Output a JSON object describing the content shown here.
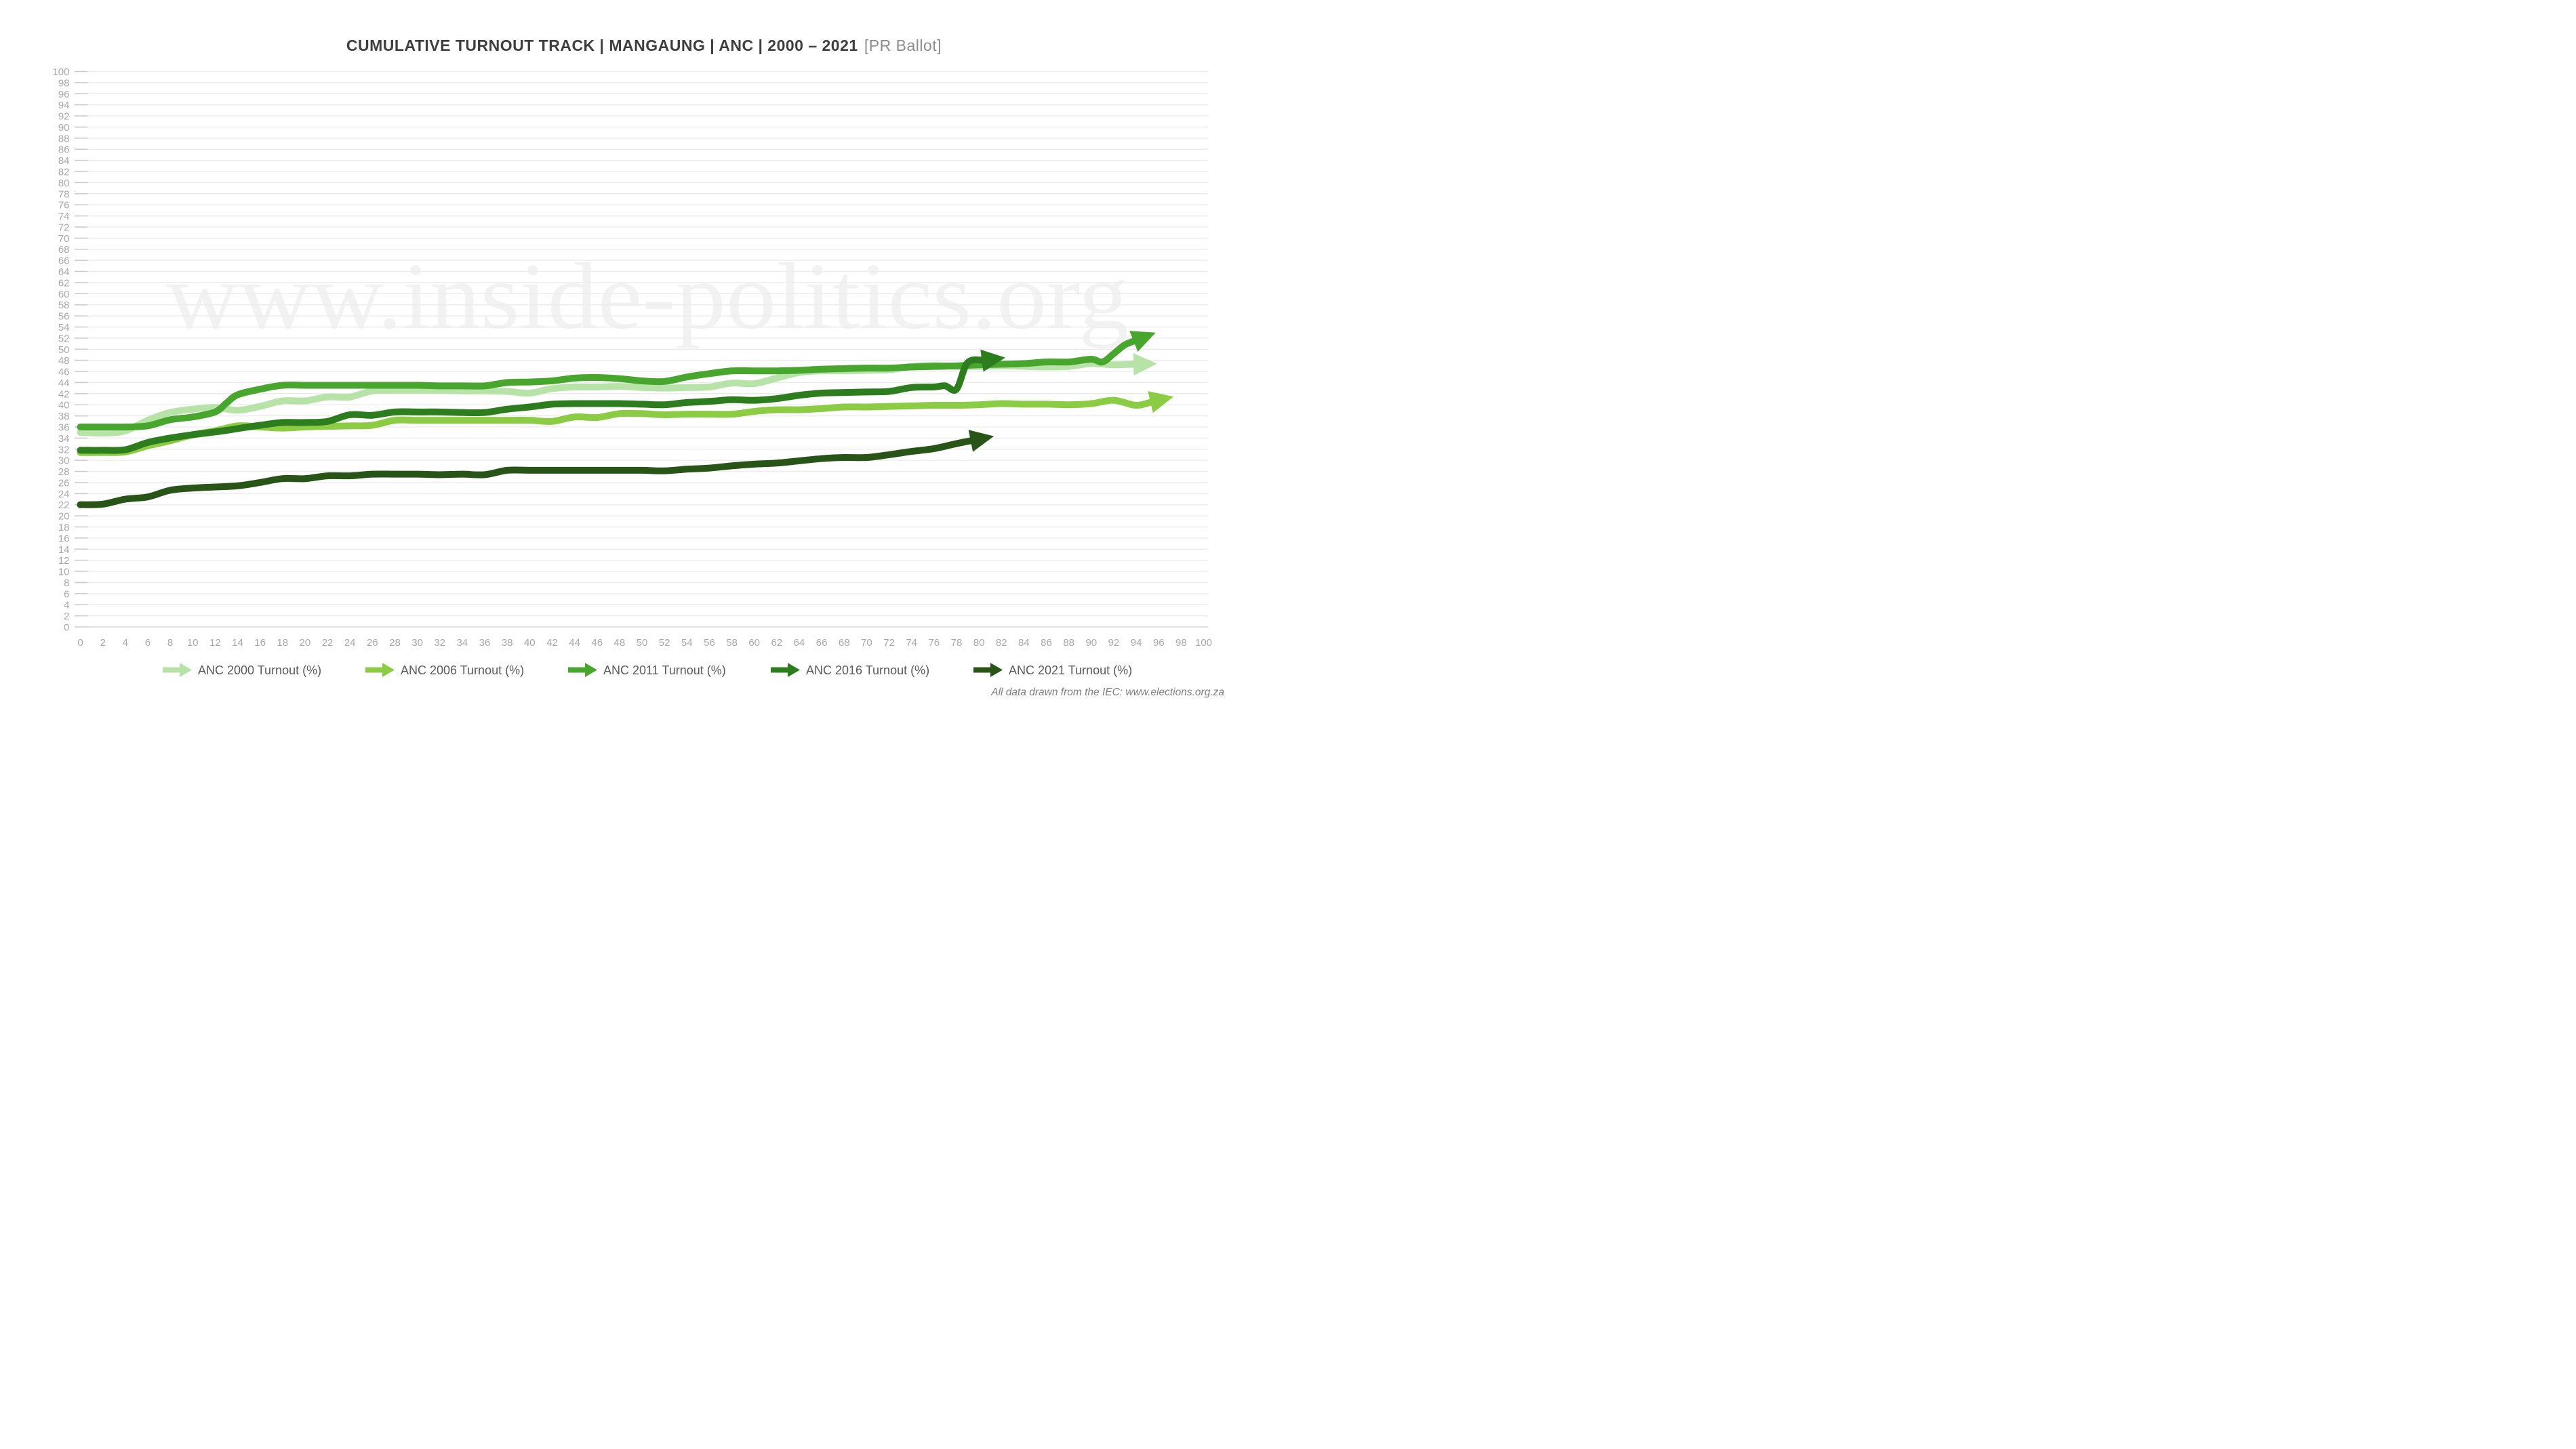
{
  "title": {
    "main": "CUMULATIVE TURNOUT TRACK | MANGAUNG | ANC | 2000 – 2021",
    "suffix": "[PR Ballot]"
  },
  "watermark": "www.inside-politics.org",
  "footer": "All data drawn from the IEC: www.elections.org.za",
  "colors": {
    "anc2000": "#b8e3a8",
    "anc2006": "#8ccc44",
    "anc2011": "#48a52d",
    "anc2016": "#2d7d1e",
    "anc2021": "#285417",
    "axis_text": "#a8a8a8",
    "grid": "#ededed",
    "title_text": "#3e3e3e",
    "title_suffix_text": "#8d8d8d",
    "legend_text": "#5a5a5a"
  },
  "chart_data": {
    "type": "line",
    "title": "CUMULATIVE TURNOUT TRACK | MANGAUNG | ANC | 2000 – 2021 [PR Ballot]",
    "xlabel": "",
    "ylabel": "",
    "xlim": [
      0,
      100
    ],
    "ylim": [
      0,
      100
    ],
    "x_tick_step": 2,
    "y_tick_step": 2,
    "grid": "horizontal",
    "legend_position": "bottom",
    "series": [
      {
        "name": "ANC 2000 Turnout (%)",
        "color": "#b8e3a8",
        "arrow": true,
        "x": [
          0,
          2,
          4,
          6,
          8,
          10,
          12,
          14,
          16,
          18,
          20,
          22,
          24,
          26,
          28,
          30,
          32,
          34,
          36,
          38,
          40,
          42,
          44,
          46,
          48,
          50,
          52,
          54,
          56,
          58,
          60,
          62,
          64,
          66,
          68,
          70,
          72,
          74,
          76,
          78,
          80,
          82,
          84,
          86,
          88,
          90,
          92,
          94
        ],
        "values": [
          35.0,
          34.9,
          35.3,
          37.2,
          38.6,
          39.2,
          39.5,
          39.0,
          39.7,
          40.7,
          40.7,
          41.4,
          41.4,
          42.5,
          42.6,
          42.6,
          42.6,
          42.5,
          42.5,
          42.4,
          42.1,
          42.9,
          43.2,
          43.2,
          43.3,
          43.1,
          43.0,
          43.1,
          43.2,
          43.9,
          43.8,
          44.8,
          45.8,
          46.1,
          46.1,
          46.2,
          46.3,
          46.9,
          47.1,
          46.9,
          46.9,
          47.0,
          46.9,
          46.8,
          46.9,
          47.4,
          47.2,
          47.3
        ]
      },
      {
        "name": "ANC 2006 Turnout (%)",
        "color": "#8ccc44",
        "arrow": true,
        "x": [
          0,
          2,
          4,
          6,
          8,
          10,
          12,
          14,
          16,
          18,
          20,
          22,
          24,
          26,
          28,
          30,
          32,
          34,
          36,
          38,
          40,
          42,
          44,
          46,
          48,
          50,
          52,
          54,
          56,
          58,
          60,
          62,
          64,
          66,
          68,
          70,
          72,
          74,
          76,
          78,
          80,
          82,
          84,
          86,
          88,
          90,
          92,
          94,
          95.5
        ],
        "values": [
          31.4,
          31.4,
          31.5,
          32.6,
          33.5,
          34.6,
          35.3,
          36.2,
          36.0,
          35.8,
          36.0,
          36.1,
          36.2,
          36.3,
          37.2,
          37.2,
          37.2,
          37.2,
          37.2,
          37.2,
          37.2,
          37.0,
          37.8,
          37.7,
          38.4,
          38.4,
          38.2,
          38.3,
          38.3,
          38.3,
          38.8,
          39.1,
          39.1,
          39.3,
          39.6,
          39.6,
          39.7,
          39.8,
          39.9,
          39.9,
          40.0,
          40.2,
          40.1,
          40.1,
          40.0,
          40.2,
          40.8,
          39.9,
          40.6
        ]
      },
      {
        "name": "ANC 2011 Turnout (%)",
        "color": "#48a52d",
        "arrow": true,
        "x": [
          0,
          2,
          4,
          6,
          8,
          10,
          12,
          13,
          14,
          16,
          18,
          20,
          22,
          24,
          26,
          28,
          30,
          32,
          34,
          36,
          38,
          40,
          42,
          44,
          46,
          48,
          50,
          52,
          54,
          56,
          58,
          60,
          62,
          64,
          66,
          68,
          70,
          72,
          74,
          76,
          78,
          80,
          82,
          84,
          86,
          88,
          90,
          91,
          92,
          93,
          94
        ],
        "values": [
          36.0,
          36.0,
          36.0,
          36.2,
          37.3,
          37.8,
          38.7,
          40.3,
          41.8,
          42.8,
          43.5,
          43.5,
          43.5,
          43.5,
          43.5,
          43.5,
          43.5,
          43.4,
          43.4,
          43.4,
          44.0,
          44.1,
          44.3,
          44.8,
          44.9,
          44.7,
          44.3,
          44.2,
          45.0,
          45.6,
          46.1,
          46.1,
          46.1,
          46.2,
          46.4,
          46.5,
          46.6,
          46.6,
          46.8,
          46.9,
          47.0,
          47.2,
          47.3,
          47.4,
          47.7,
          47.7,
          48.2,
          47.7,
          49.2,
          50.8,
          51.6
        ]
      },
      {
        "name": "ANC 2016 Turnout (%)",
        "color": "#2d7d1e",
        "arrow": true,
        "x": [
          0,
          2,
          4,
          6,
          8,
          10,
          12,
          14,
          16,
          18,
          20,
          22,
          24,
          26,
          28,
          30,
          32,
          34,
          36,
          38,
          40,
          42,
          44,
          46,
          48,
          50,
          52,
          54,
          56,
          58,
          60,
          62,
          64,
          66,
          68,
          70,
          72,
          74,
          76,
          77,
          78,
          79,
          80.5
        ],
        "values": [
          31.8,
          31.8,
          31.9,
          33.2,
          34.0,
          34.6,
          35.1,
          35.7,
          36.3,
          36.8,
          36.8,
          37.0,
          38.2,
          38.1,
          38.7,
          38.7,
          38.7,
          38.6,
          38.6,
          39.2,
          39.6,
          40.1,
          40.2,
          40.2,
          40.2,
          40.1,
          40.0,
          40.4,
          40.6,
          40.9,
          40.8,
          41.1,
          41.7,
          42.1,
          42.2,
          42.3,
          42.4,
          43.1,
          43.2,
          43.4,
          42.8,
          47.6,
          48.0
        ]
      },
      {
        "name": "ANC 2021 Turnout (%)",
        "color": "#285417",
        "arrow": true,
        "x": [
          0,
          2,
          4,
          6,
          8,
          10,
          12,
          14,
          16,
          18,
          20,
          22,
          24,
          26,
          28,
          30,
          32,
          34,
          36,
          38,
          40,
          42,
          44,
          46,
          48,
          50,
          52,
          54,
          56,
          58,
          60,
          62,
          64,
          66,
          68,
          70,
          72,
          74,
          76,
          78,
          79.5
        ],
        "values": [
          22.0,
          22.1,
          23.0,
          23.4,
          24.6,
          25.0,
          25.2,
          25.4,
          26.0,
          26.7,
          26.7,
          27.2,
          27.2,
          27.5,
          27.5,
          27.5,
          27.4,
          27.5,
          27.4,
          28.2,
          28.2,
          28.2,
          28.2,
          28.2,
          28.2,
          28.2,
          28.1,
          28.4,
          28.6,
          29.0,
          29.3,
          29.5,
          29.9,
          30.3,
          30.5,
          30.5,
          31.0,
          31.6,
          32.1,
          33.0,
          33.6
        ]
      }
    ]
  }
}
